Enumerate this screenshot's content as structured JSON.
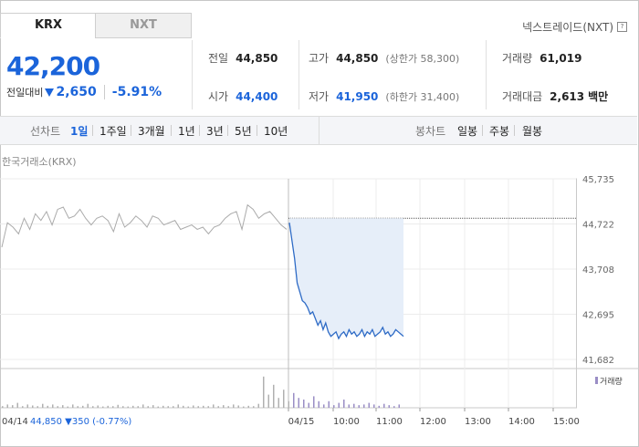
{
  "tabs": [
    {
      "label": "KRX",
      "active": true
    },
    {
      "label": "NXT",
      "active": false
    }
  ],
  "nxt_link": {
    "label": "넥스트레이드(NXT)",
    "icon": "question-icon",
    "icon_glyph": "?"
  },
  "quote": {
    "price": "42,200",
    "change_label": "전일대비",
    "change_amount": "2,650",
    "change_pct": "-5.91%",
    "direction_icon": "down-triangle-icon",
    "color_down": "#1b64da"
  },
  "stats": {
    "prev_close": {
      "label": "전일",
      "value": "44,850"
    },
    "high": {
      "label": "고가",
      "value": "44,850",
      "sub": "(상한가 58,300)"
    },
    "volume": {
      "label": "거래량",
      "value": "61,019"
    },
    "open": {
      "label": "시가",
      "value": "44,400"
    },
    "low": {
      "label": "저가",
      "value": "41,950",
      "sub": "(하한가 31,400)"
    },
    "amount": {
      "label": "거래대금",
      "value": "2,613",
      "unit": "백만"
    }
  },
  "periods": {
    "line_label": "선차트",
    "line_items": [
      "1일",
      "1주일",
      "3개월",
      "1년",
      "3년",
      "5년",
      "10년"
    ],
    "selected": "1일",
    "candle_label": "봉차트",
    "candle_items": [
      "일봉",
      "주봉",
      "월봉"
    ]
  },
  "chart_data": {
    "type": "line",
    "exchange_label": "한국거래소(KRX)",
    "y_ticks": [
      "45,735",
      "44,722",
      "43,708",
      "42,695",
      "41,682"
    ],
    "ylim": [
      41682,
      45735
    ],
    "reference_price": 44850,
    "x_labels": [
      "04/14",
      "04/15",
      "10:00",
      "11:00",
      "12:00",
      "13:00",
      "14:00",
      "15:00"
    ],
    "prev_day_values": [
      44200,
      44750,
      44650,
      44500,
      44850,
      44600,
      44950,
      44800,
      45000,
      44700,
      45050,
      45100,
      44850,
      44900,
      45050,
      44850,
      44700,
      44850,
      44900,
      44800,
      44550,
      44950,
      44650,
      44750,
      44900,
      44800,
      44650,
      44900,
      44850,
      44700,
      44750,
      44800,
      44600,
      44650,
      44700,
      44600,
      44650,
      44500,
      44650,
      44700,
      44850,
      44950,
      45000,
      44600,
      45150,
      45050,
      44850,
      44950,
      45000,
      44850,
      44700,
      44600
    ],
    "today_values": [
      44750,
      44350,
      43950,
      43400,
      43200,
      43000,
      42950,
      42850,
      42700,
      42750,
      42600,
      42450,
      42550,
      42350,
      42500,
      42300,
      42200,
      42250,
      42300,
      42150,
      42250,
      42300,
      42200,
      42350,
      42250,
      42300,
      42200,
      42250,
      42350,
      42200,
      42300,
      42250,
      42350,
      42200,
      42250,
      42300,
      42400,
      42250,
      42300,
      42200,
      42250,
      42350,
      42300,
      42250,
      42200
    ],
    "volume_label": "거래량",
    "volume_values": [
      0.05,
      0.1,
      0.08,
      0.15,
      0.05,
      0.1,
      0.07,
      0.05,
      0.12,
      0.06,
      0.1,
      0.05,
      0.08,
      0.04,
      0.1,
      0.05,
      0.06,
      0.12,
      0.05,
      0.07,
      0.04,
      0.06,
      0.05,
      0.09,
      0.05,
      0.04,
      0.06,
      0.05,
      0.1,
      0.05,
      0.08,
      0.04,
      0.06,
      0.05,
      0.05,
      0.1,
      0.06,
      0.04,
      0.07,
      0.05,
      0.06,
      0.05,
      0.1,
      0.05,
      0.08,
      0.05,
      0.1,
      0.07,
      0.04,
      0.06,
      0.05,
      0.12,
      0.95,
      0.4,
      0.7,
      0.3,
      0.55,
      0.2,
      0.45,
      0.3,
      0.25,
      0.15,
      0.35,
      0.2,
      0.1,
      0.2,
      0.08,
      0.15,
      0.25,
      0.1,
      0.12,
      0.08,
      0.1,
      0.15,
      0.1,
      0.06,
      0.12,
      0.08,
      0.05,
      0.1
    ],
    "summary": {
      "date": "04/14",
      "price": "44,850",
      "change": "▼350",
      "pct": "(-0.77%)"
    },
    "colors": {
      "line": "#2e6bc6",
      "prev_line": "#aaaaaa",
      "area": "#e6eef9",
      "volume": "#9a8ec5",
      "prev_volume": "#b0b0b0"
    }
  }
}
